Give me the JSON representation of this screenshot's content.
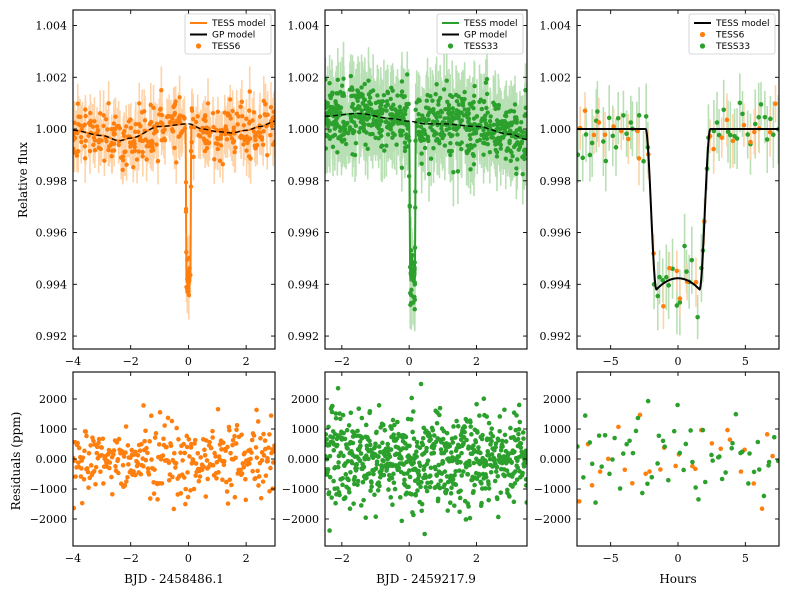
{
  "colors": {
    "tess6": "#ff7f0e",
    "tess33": "#2ca02c",
    "model_black": "#000000",
    "tess6_err": "#ffd3a8",
    "tess33_err": "#b9e0b5"
  },
  "labels": {
    "ylabel_top": "Relative flux",
    "ylabel_bottom": "Residuals (ppm)",
    "xlabel_left": "BJD - 2458486.1",
    "xlabel_mid": "BJD - 2459217.9",
    "xlabel_right": "Hours"
  },
  "legends": {
    "left": [
      "TESS model",
      "GP model",
      "TESS6"
    ],
    "mid": [
      "TESS model",
      "GP model",
      "TESS33"
    ],
    "right": [
      "TESS model",
      "TESS6",
      "TESS33"
    ]
  },
  "chart_data": [
    {
      "id": "flux-sector6",
      "type": "scatter",
      "xlim": [
        -4,
        3
      ],
      "ylim": [
        0.9915,
        1.0046
      ],
      "xticks": [
        -4,
        -2,
        0,
        2
      ],
      "yticks": [
        0.992,
        0.994,
        0.996,
        0.998,
        1.0,
        1.002,
        1.004
      ],
      "series": [
        {
          "name": "TESS6",
          "kind": "data",
          "scatter_ppm": 700,
          "n_points": 380
        },
        {
          "name": "TESS model",
          "kind": "transit",
          "transit_center": 0.0,
          "depth": 0.0062,
          "total_duration_hours": 4.8,
          "ingress_hours": 0.8
        },
        {
          "name": "GP model",
          "kind": "trend",
          "x": [
            -4,
            -3,
            -2.4,
            -2,
            -1,
            0,
            0.5,
            1,
            1.5,
            2,
            2.5,
            3
          ],
          "y": [
            0.99995,
            0.99975,
            0.99955,
            0.99965,
            1.0001,
            1.0002,
            1.0,
            0.9999,
            0.99985,
            0.99995,
            1.0001,
            1.0003
          ]
        }
      ]
    },
    {
      "id": "flux-sector33",
      "type": "scatter",
      "xlim": [
        -2.5,
        3.5
      ],
      "ylim": [
        0.9915,
        1.0046
      ],
      "xticks": [
        -2,
        0,
        2
      ],
      "yticks": [
        0.992,
        0.994,
        0.996,
        0.998,
        1.0,
        1.002,
        1.004
      ],
      "series": [
        {
          "name": "TESS33",
          "kind": "data",
          "scatter_ppm": 900,
          "n_points": 760
        },
        {
          "name": "TESS model",
          "kind": "transit",
          "transit_center": 0.1,
          "depth": 0.0062,
          "total_duration_hours": 4.8,
          "ingress_hours": 0.8
        },
        {
          "name": "GP model",
          "kind": "trend",
          "x": [
            -2.5,
            -1.5,
            -0.5,
            0,
            0.5,
            1,
            2,
            3,
            3.5
          ],
          "y": [
            1.0005,
            1.0006,
            1.0004,
            1.0003,
            1.0002,
            1.0002,
            1.0001,
            0.9998,
            0.9996
          ]
        }
      ]
    },
    {
      "id": "flux-phase",
      "type": "scatter",
      "xlim": [
        -7.5,
        7.5
      ],
      "ylim": [
        0.9915,
        1.0046
      ],
      "xticks": [
        -5,
        0,
        5
      ],
      "yticks": [
        0.992,
        0.994,
        0.996,
        0.998,
        1.0,
        1.002,
        1.004
      ],
      "series": [
        {
          "name": "TESS6",
          "kind": "data",
          "scatter_ppm": 700,
          "n_points": 30
        },
        {
          "name": "TESS33",
          "kind": "data",
          "scatter_ppm": 900,
          "n_points": 60
        },
        {
          "name": "TESS model",
          "kind": "transit",
          "transit_center": 0.0,
          "depth": 0.0062,
          "total_duration_hours": 4.8,
          "ingress_hours": 0.8
        }
      ]
    },
    {
      "id": "resid-sector6",
      "type": "scatter",
      "xlim": [
        -4,
        3
      ],
      "ylim": [
        -2900,
        2900
      ],
      "xticks": [
        -4,
        -2,
        0,
        2
      ],
      "yticks": [
        -2000,
        -1000,
        0,
        1000,
        2000
      ],
      "series": [
        {
          "name": "TESS6",
          "scatter_ppm": 700,
          "n_points": 330
        }
      ]
    },
    {
      "id": "resid-sector33",
      "type": "scatter",
      "xlim": [
        -2.5,
        3.5
      ],
      "ylim": [
        -2900,
        2900
      ],
      "xticks": [
        -2,
        0,
        2
      ],
      "yticks": [
        -2000,
        -1000,
        0,
        1000,
        2000
      ],
      "series": [
        {
          "name": "TESS33",
          "scatter_ppm": 900,
          "n_points": 720
        }
      ]
    },
    {
      "id": "resid-phase",
      "type": "scatter",
      "xlim": [
        -7.5,
        7.5
      ],
      "ylim": [
        -2900,
        2900
      ],
      "xticks": [
        -5,
        0,
        5
      ],
      "yticks": [
        -2000,
        -1000,
        0,
        1000,
        2000
      ],
      "series": [
        {
          "name": "TESS6",
          "scatter_ppm": 700,
          "n_points": 28
        },
        {
          "name": "TESS33",
          "scatter_ppm": 900,
          "n_points": 60
        }
      ]
    }
  ]
}
